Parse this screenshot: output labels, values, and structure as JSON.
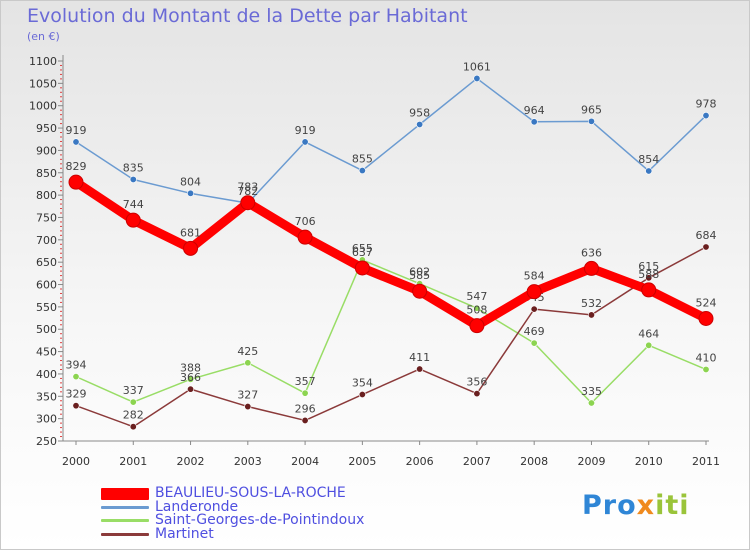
{
  "title": "Evolution du Montant de la Dette par Habitant",
  "subtitle": "(en €)",
  "logo_text": "Proxiti",
  "chart_data": {
    "type": "line",
    "title": "Evolution du Montant de la Dette par Habitant",
    "subtitle": "(en €)",
    "xlabel": "",
    "ylabel": "",
    "x": [
      "2000",
      "2001",
      "2002",
      "2003",
      "2004",
      "2005",
      "2006",
      "2007",
      "2008",
      "2009",
      "2010",
      "2011"
    ],
    "ylim": [
      250,
      1100
    ],
    "yticks": [
      250,
      300,
      350,
      400,
      450,
      500,
      550,
      600,
      650,
      700,
      750,
      800,
      850,
      900,
      950,
      1000,
      1050,
      1100
    ],
    "grid": false,
    "legend_position": "bottom-left",
    "series": [
      {
        "name": "BEAULIEU-SOUS-LA-ROCHE",
        "color": "#ff0000",
        "values": [
          829,
          744,
          681,
          783,
          706,
          637,
          585,
          508,
          584,
          636,
          588,
          524
        ]
      },
      {
        "name": "Landeronde",
        "color": "#6b9bd1",
        "values": [
          919,
          835,
          804,
          782,
          919,
          855,
          958,
          1061,
          964,
          965,
          854,
          978
        ]
      },
      {
        "name": "Saint-Georges-de-Pointindoux",
        "color": "#99dd66",
        "values": [
          394,
          337,
          388,
          425,
          357,
          655,
          602,
          547,
          469,
          335,
          464,
          410
        ]
      },
      {
        "name": "Martinet",
        "color": "#8b3a3a",
        "values": [
          329,
          282,
          366,
          327,
          296,
          354,
          411,
          356,
          545,
          532,
          615,
          684
        ]
      }
    ]
  }
}
